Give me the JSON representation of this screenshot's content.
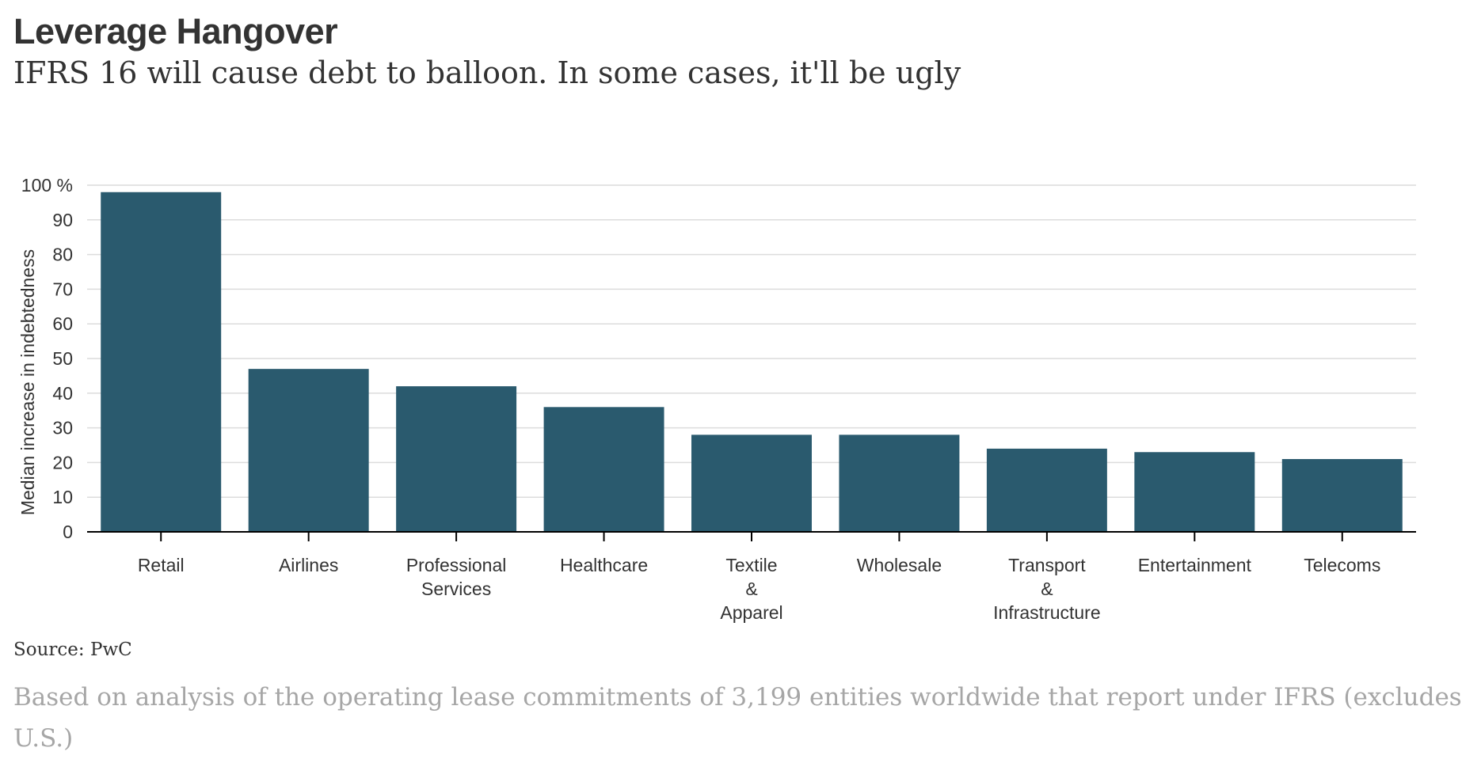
{
  "header": {
    "title": "Leverage Hangover",
    "subtitle": "IFRS 16 will cause debt to balloon. In some cases, it'll be ugly"
  },
  "footer": {
    "source": "Source: PwC",
    "note_line1": "Based on analysis of the operating lease commitments of 3,199 entities worldwide that report under IFRS (excludes",
    "note_line2": "U.S.)"
  },
  "colors": {
    "bar": "#2a5a6e",
    "grid": "#dcdcdc",
    "axis": "#000000",
    "text": "#333333"
  },
  "chart_data": {
    "type": "bar",
    "title": "",
    "xlabel": "",
    "ylabel": "Median increase in indebtedness",
    "ylim": [
      0,
      100
    ],
    "yticks": [
      "0",
      "10",
      "20",
      "30",
      "40",
      "50",
      "60",
      "70",
      "80",
      "90",
      "100 %"
    ],
    "grid": true,
    "categories": [
      [
        "Retail"
      ],
      [
        "Airlines"
      ],
      [
        "Professional",
        "Services"
      ],
      [
        "Healthcare"
      ],
      [
        "Textile",
        "&",
        "Apparel"
      ],
      [
        "Wholesale"
      ],
      [
        "Transport",
        "&",
        "Infrastructure"
      ],
      [
        "Entertainment"
      ],
      [
        "Telecoms"
      ]
    ],
    "values": [
      98,
      47,
      42,
      36,
      28,
      28,
      24,
      23,
      21
    ]
  }
}
